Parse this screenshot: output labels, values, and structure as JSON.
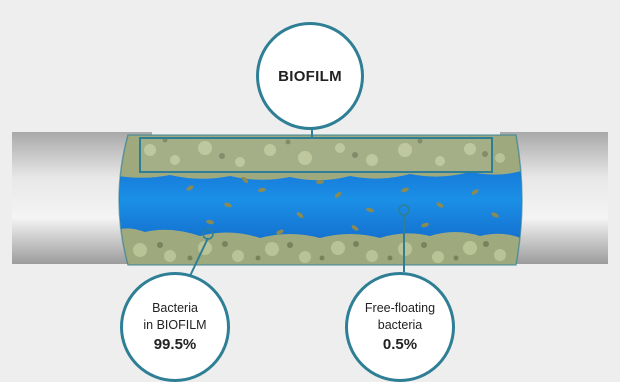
{
  "callouts": {
    "biofilm": {
      "title": "BIOFILM"
    },
    "attached": {
      "line1": "Bacteria",
      "line2": "in BIOFILM",
      "percent": "99.5%"
    },
    "free": {
      "line1": "Free-floating",
      "line2": "bacteria",
      "percent": "0.5%"
    }
  },
  "colors": {
    "pipe_gray": "#c4c4c4",
    "water_blue": "#1a8be0",
    "biofilm_green": "#9aa57a",
    "callout_ring": "#2e7f95"
  }
}
